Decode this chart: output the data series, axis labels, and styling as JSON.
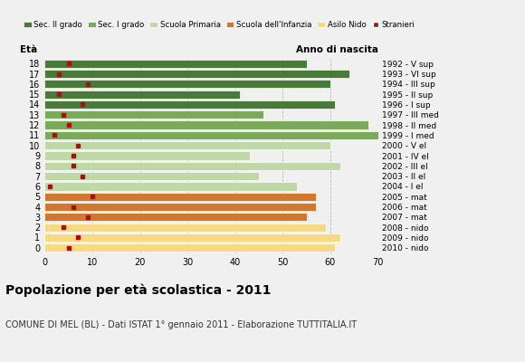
{
  "title": "Popolazione per età scolastica - 2011",
  "subtitle": "COMUNE DI MEL (BL) - Dati ISTAT 1° gennaio 2011 - Elaborazione TUTTITALIA.IT",
  "xlabel_left": "Età",
  "xlabel_right": "Anno di nascita",
  "xlim": [
    0,
    70
  ],
  "xticks": [
    0,
    10,
    20,
    30,
    40,
    50,
    60,
    70
  ],
  "ages": [
    18,
    17,
    16,
    15,
    14,
    13,
    12,
    11,
    10,
    9,
    8,
    7,
    6,
    5,
    4,
    3,
    2,
    1,
    0
  ],
  "years": [
    "1992 - V sup",
    "1993 - VI sup",
    "1994 - III sup",
    "1995 - II sup",
    "1996 - I sup",
    "1997 - III med",
    "1998 - II med",
    "1999 - I med",
    "2000 - V el",
    "2001 - IV el",
    "2002 - III el",
    "2003 - II el",
    "2004 - I el",
    "2005 - mat",
    "2006 - mat",
    "2007 - mat",
    "2008 - nido",
    "2009 - nido",
    "2010 - nido"
  ],
  "bar_values": [
    55,
    64,
    60,
    41,
    61,
    46,
    68,
    70,
    60,
    43,
    62,
    45,
    53,
    57,
    57,
    55,
    59,
    62,
    61
  ],
  "stranieri": [
    5,
    3,
    9,
    3,
    8,
    4,
    5,
    2,
    7,
    6,
    6,
    8,
    1,
    10,
    6,
    9,
    4,
    7,
    5
  ],
  "categories": {
    "sec2": [
      18,
      17,
      16,
      15,
      14
    ],
    "sec1": [
      13,
      12,
      11
    ],
    "primaria": [
      10,
      9,
      8,
      7,
      6
    ],
    "infanzia": [
      5,
      4,
      3
    ],
    "nido": [
      2,
      1,
      0
    ]
  },
  "colors": {
    "sec2": "#4a7a3a",
    "sec1": "#7aaa5a",
    "primaria": "#c0d8a8",
    "infanzia": "#d07830",
    "nido": "#f8d880",
    "stranieri": "#aa1010"
  },
  "legend_items": [
    {
      "label": "Sec. II grado",
      "color": "#4a7a3a",
      "type": "patch"
    },
    {
      "label": "Sec. I grado",
      "color": "#7aaa5a",
      "type": "patch"
    },
    {
      "label": "Scuola Primaria",
      "color": "#c0d8a8",
      "type": "patch"
    },
    {
      "label": "Scuola dell'Infanzia",
      "color": "#d07830",
      "type": "patch"
    },
    {
      "label": "Asilo Nido",
      "color": "#f8d880",
      "type": "patch"
    },
    {
      "label": "Stranieri",
      "color": "#aa1010",
      "type": "marker"
    }
  ],
  "grid_color": "#bbbbbb",
  "bg_color": "#f0f0f0",
  "bar_edgecolor": "#ffffff",
  "bar_height": 0.82
}
